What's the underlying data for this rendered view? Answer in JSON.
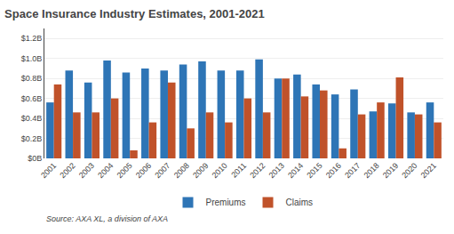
{
  "chart_data": {
    "type": "bar",
    "title": "Space Insurance Industry Estimates, 2001-2021",
    "annotations": [
      "Source: AXA XL, a division of AXA"
    ],
    "categories": [
      "2001",
      "2002",
      "2003",
      "2004",
      "2005",
      "2006",
      "2007",
      "2008",
      "2009",
      "2010",
      "2011",
      "2012",
      "2013",
      "2014",
      "2015",
      "2016",
      "2017",
      "2018",
      "2019",
      "2020",
      "2021"
    ],
    "series": [
      {
        "name": "Premiums",
        "color": "#2E75B6",
        "values": [
          0.56,
          0.88,
          0.76,
          0.98,
          0.86,
          0.9,
          0.88,
          0.94,
          0.97,
          0.88,
          0.88,
          0.99,
          0.8,
          0.84,
          0.74,
          0.64,
          0.69,
          0.47,
          0.55,
          0.46,
          0.56
        ]
      },
      {
        "name": "Claims",
        "color": "#C0522A",
        "values": [
          0.74,
          0.46,
          0.46,
          0.6,
          0.08,
          0.36,
          0.76,
          0.3,
          0.46,
          0.36,
          0.6,
          0.46,
          0.8,
          0.62,
          0.68,
          0.1,
          0.44,
          0.56,
          0.81,
          0.44,
          0.36
        ]
      }
    ],
    "ylim": [
      0,
      1.3
    ],
    "yticks": [
      {
        "value": 0,
        "label": "$0B"
      },
      {
        "value": 0.2,
        "label": "$0.2B"
      },
      {
        "value": 0.4,
        "label": "$0.4B"
      },
      {
        "value": 0.6,
        "label": "$0.6B"
      },
      {
        "value": 0.8,
        "label": "$0.8B"
      },
      {
        "value": 1.0,
        "label": "$1.0B"
      },
      {
        "value": 1.2,
        "label": "$1.2B"
      }
    ],
    "grid": true,
    "legend": "bottom"
  }
}
